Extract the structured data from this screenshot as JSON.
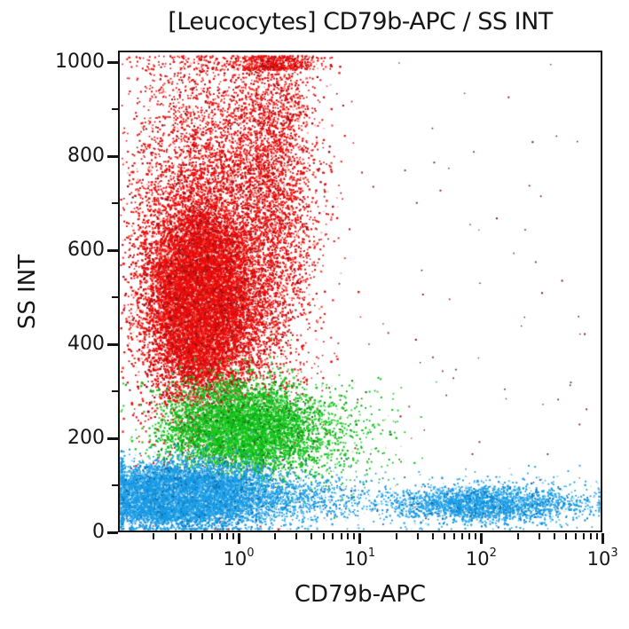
{
  "chart_data": {
    "type": "scatter",
    "title": "[Leucocytes] CD79b-APC / SS INT",
    "xlabel": "CD79b-APC",
    "ylabel": "SS INT",
    "x_scale": "log",
    "y_scale": "linear",
    "xlim": [
      0.1,
      1000
    ],
    "ylim": [
      0,
      1025
    ],
    "grid": false,
    "legend": "none",
    "axis_color": "#141414",
    "background_color": "#ffffff",
    "x_major_ticks": [
      {
        "base": "10",
        "exp": "0",
        "value": 1
      },
      {
        "base": "10",
        "exp": "1",
        "value": 10
      },
      {
        "base": "10",
        "exp": "2",
        "value": 100
      },
      {
        "base": "10",
        "exp": "3",
        "value": 1000
      }
    ],
    "x_minor_multipliers": [
      2,
      3,
      4,
      5,
      6,
      7,
      8,
      9
    ],
    "x_minor_decades": [
      -1,
      0,
      1,
      2
    ],
    "y_major_ticks": [
      0,
      200,
      400,
      600,
      800,
      1000
    ],
    "y_minor_ticks": [
      100,
      300,
      500,
      700,
      900
    ],
    "seed": 1337,
    "palettes": {
      "red": [
        [
          "#ed0c0c",
          0.62
        ],
        [
          "#f84030",
          0.08
        ],
        [
          "#c00d0d",
          0.12
        ],
        [
          "#8f0e16",
          0.1
        ],
        [
          "#fab3a8",
          0.08
        ]
      ],
      "dark_red": [
        [
          "#7c1020",
          0.7
        ],
        [
          "#a03545",
          0.3
        ]
      ],
      "green": [
        [
          "#12c51a",
          0.62
        ],
        [
          "#49d84d",
          0.1
        ],
        [
          "#0ea216",
          0.12
        ],
        [
          "#0b7c11",
          0.08
        ],
        [
          "#b5e9b2",
          0.08
        ]
      ],
      "blue": [
        [
          "#1b9ee8",
          0.62
        ],
        [
          "#5cbff0",
          0.12
        ],
        [
          "#0e85cc",
          0.12
        ],
        [
          "#0d6aa8",
          0.06
        ],
        [
          "#bfe2f6",
          0.08
        ]
      ]
    },
    "populations": [
      {
        "name": "granulocytes-core",
        "palette": "red",
        "count": 9500,
        "lx_dist": "normal",
        "lx_mean": -0.33,
        "lx_sd": 0.2,
        "y_dist": "normal",
        "y_mean": 500,
        "y_sd": 95,
        "size": [
          1.8,
          2.8
        ],
        "edge": "skip"
      },
      {
        "name": "granulocytes-halo",
        "palette": "red",
        "count": 6500,
        "lx_dist": "normal",
        "lx_mean": -0.22,
        "lx_sd": 0.34,
        "y_dist": "normal",
        "y_mean": 545,
        "y_sd": 180,
        "size": [
          1.5,
          2.4
        ],
        "edge": "skip"
      },
      {
        "name": "granulocytes-high-ss",
        "palette": "red",
        "count": 3200,
        "lx_dist": "normal",
        "lx_mean": 0.28,
        "lx_sd": 0.18,
        "y_dist": "normal",
        "y_mean": 800,
        "y_sd": 205,
        "size": [
          1.5,
          2.4
        ],
        "edge": "skip"
      },
      {
        "name": "granulocytes-upper",
        "palette": "red",
        "count": 1100,
        "lx_dist": "normal",
        "lx_mean": -0.35,
        "lx_sd": 0.3,
        "y_dist": "normal",
        "y_mean": 845,
        "y_sd": 110,
        "size": [
          1.5,
          2.2
        ],
        "edge": "skip"
      },
      {
        "name": "scattered-outliers",
        "palette": "dark_red",
        "count": 130,
        "lx_dist": "uniform",
        "lx_min": -0.9,
        "lx_max": 2.9,
        "y_dist": "uniform",
        "y_min": 30,
        "y_max": 1000,
        "size": [
          1.3,
          2.0
        ],
        "edge": "skip"
      },
      {
        "name": "monocytes",
        "palette": "green",
        "count": 5200,
        "lx_dist": "normal",
        "lx_mean": 0.0,
        "lx_sd": 0.3,
        "y_dist": "normal",
        "y_mean": 222,
        "y_sd": 48,
        "size": [
          1.6,
          2.6
        ],
        "edge": "clamp"
      },
      {
        "name": "monocytes-tail",
        "palette": "green",
        "count": 800,
        "lx_dist": "normal",
        "lx_mean": 0.55,
        "lx_sd": 0.35,
        "y_dist": "normal",
        "y_mean": 212,
        "y_sd": 55,
        "size": [
          1.5,
          2.2
        ],
        "edge": "skip"
      },
      {
        "name": "lymphocytes-core",
        "palette": "blue",
        "count": 9000,
        "lx_dist": "normal",
        "lx_mean": -0.58,
        "lx_sd": 0.22,
        "y_dist": "normal",
        "y_mean": 78,
        "y_sd": 20,
        "size": [
          1.8,
          2.8
        ],
        "edge": "clamp"
      },
      {
        "name": "lymphocytes-halo",
        "palette": "blue",
        "count": 8000,
        "lx_dist": "normal",
        "lx_mean": -0.45,
        "lx_sd": 0.35,
        "y_dist": "normal",
        "y_mean": 82,
        "y_sd": 32,
        "size": [
          1.5,
          2.4
        ],
        "edge": "clamp"
      },
      {
        "name": "lymphocytes-tail",
        "palette": "blue",
        "count": 900,
        "lx_dist": "normal",
        "lx_mean": 0.35,
        "lx_sd": 0.35,
        "y_dist": "normal",
        "y_mean": 72,
        "y_sd": 28,
        "size": [
          1.4,
          2.2
        ],
        "edge": "skip"
      },
      {
        "name": "b-cells-band",
        "palette": "blue",
        "count": 2100,
        "lx_dist": "normal",
        "lx_mean": 2.0,
        "lx_sd": 0.38,
        "y_dist": "normal",
        "y_mean": 62,
        "y_sd": 19,
        "size": [
          1.6,
          2.4
        ],
        "edge": "skip"
      },
      {
        "name": "b-cells-sparse",
        "palette": "blue",
        "count": 350,
        "lx_dist": "uniform",
        "lx_min": 0.7,
        "lx_max": 2.97,
        "y_dist": "normal",
        "y_mean": 72,
        "y_sd": 30,
        "size": [
          1.4,
          2.0
        ],
        "edge": "skip"
      }
    ]
  }
}
